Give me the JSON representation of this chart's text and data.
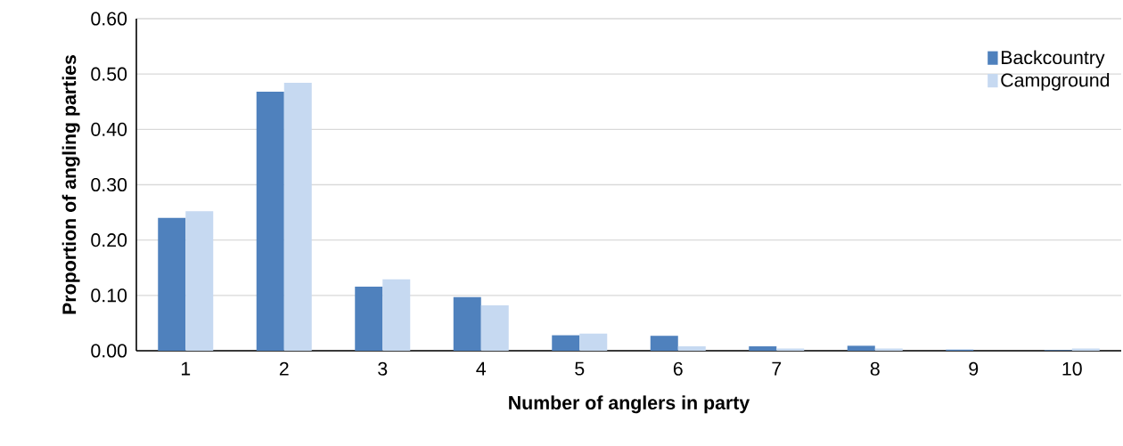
{
  "chart_data": {
    "type": "bar",
    "xlabel": "Number of anglers in party",
    "ylabel": "Proportion of angling parties",
    "categories": [
      "1",
      "2",
      "3",
      "4",
      "5",
      "6",
      "7",
      "8",
      "9",
      "10"
    ],
    "series": [
      {
        "name": "Backcountry",
        "color": "#4f81bd",
        "values": [
          0.24,
          0.468,
          0.116,
          0.097,
          0.028,
          0.027,
          0.008,
          0.009,
          0.002,
          0.001
        ]
      },
      {
        "name": "Campground",
        "color": "#c6d9f1",
        "values": [
          0.252,
          0.484,
          0.129,
          0.082,
          0.031,
          0.008,
          0.004,
          0.004,
          null,
          0.004
        ]
      }
    ],
    "ylim": [
      0,
      0.6
    ],
    "yticks": [
      {
        "value": 0,
        "label": "0.00"
      },
      {
        "value": 0.1,
        "label": "0.10"
      },
      {
        "value": 0.2,
        "label": "0.20"
      },
      {
        "value": 0.3,
        "label": "0.30"
      },
      {
        "value": 0.4,
        "label": "0.40"
      },
      {
        "value": 0.5,
        "label": "0.50"
      },
      {
        "value": 0.6,
        "label": "0.60"
      }
    ],
    "grid": "y",
    "legend": "top right"
  }
}
